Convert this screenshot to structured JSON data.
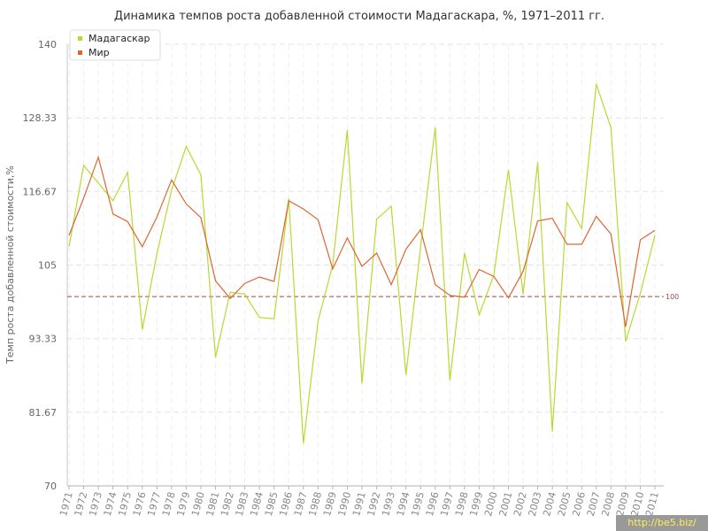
{
  "chart_data": {
    "type": "line",
    "title": "Динамика темпов роста добавленной стоимости Мадагаскара, %, 1971–2011 гг.",
    "ylabel": "Темп роста добавленной стоимости,%",
    "xlabel": "",
    "ylim": [
      70,
      140
    ],
    "yticks": [
      "70",
      "81.67",
      "93.33",
      "105",
      "116.67",
      "128.33",
      "140"
    ],
    "x": [
      "1971",
      "1972",
      "1973",
      "1974",
      "1975",
      "1976",
      "1977",
      "1978",
      "1979",
      "1980",
      "1981",
      "1982",
      "1983",
      "1984",
      "1985",
      "1986",
      "1987",
      "1988",
      "1989",
      "1990",
      "1991",
      "1992",
      "1993",
      "1994",
      "1995",
      "1996",
      "1997",
      "1998",
      "1999",
      "2000",
      "2001",
      "2002",
      "2003",
      "2004",
      "2005",
      "2006",
      "2007",
      "2008",
      "2009",
      "2010",
      "2011"
    ],
    "series": [
      {
        "name": "Мадагаскар",
        "color": "#b8d930",
        "values": [
          107.9,
          120.8,
          118.0,
          115.2,
          119.7,
          94.8,
          106.8,
          116.9,
          123.8,
          119.3,
          90.4,
          100.7,
          100.4,
          96.7,
          96.5,
          115.5,
          76.7,
          96.1,
          105.0,
          126.4,
          86.2,
          112.3,
          114.3,
          87.6,
          107.8,
          126.8,
          86.7,
          106.9,
          97.1,
          103.4,
          120.1,
          100.4,
          121.3,
          78.6,
          114.9,
          110.8,
          133.7,
          126.7,
          92.9,
          100.5,
          109.7
        ]
      },
      {
        "name": "Мир",
        "color": "#dd6633",
        "values": [
          109.7,
          115.6,
          122.1,
          113.1,
          111.9,
          107.9,
          112.6,
          118.5,
          114.7,
          112.5,
          102.5,
          99.7,
          102.1,
          103.1,
          102.4,
          115.2,
          113.9,
          112.2,
          104.4,
          109.3,
          104.8,
          106.9,
          101.9,
          107.5,
          110.6,
          101.9,
          100.2,
          99.9,
          104.3,
          103.2,
          99.8,
          104.0,
          112.0,
          112.4,
          108.3,
          108.3,
          112.7,
          109.9,
          95.2,
          109.0,
          110.5
        ]
      }
    ],
    "reference_line": {
      "value": 100,
      "label": "100",
      "color": "#9a4a4a"
    },
    "grid": true,
    "legend": "top-left"
  },
  "watermark": "http://be5.biz/"
}
